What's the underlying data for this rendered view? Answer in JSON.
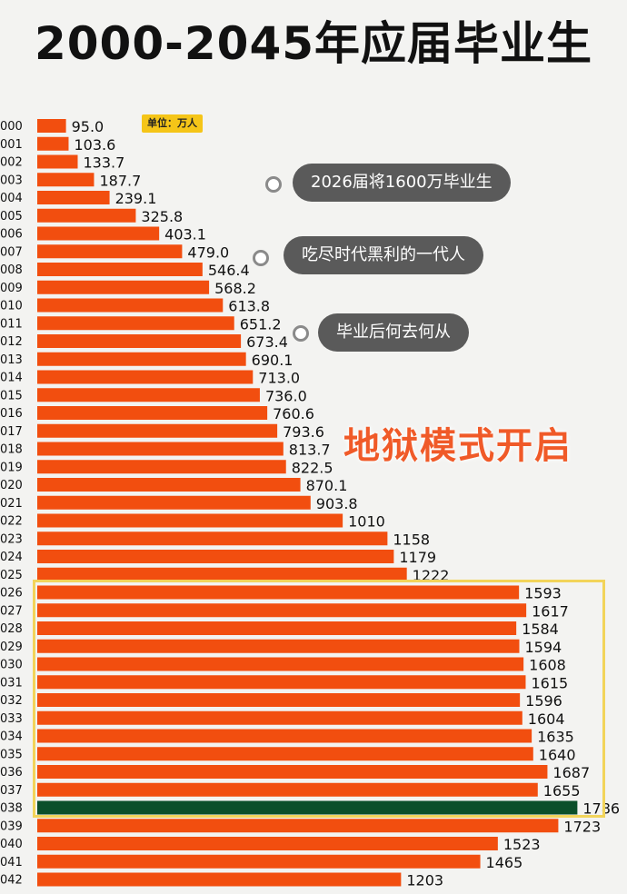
{
  "title": "2000-2045年应届毕业生",
  "unit_label": "单位：万人",
  "callouts": [
    "2026届将1600万毕业生",
    "吃尽时代黑利的一代人",
    "毕业后何去何从"
  ],
  "emphasis_text": "地狱模式开启",
  "colors": {
    "bar": "#f24e0f",
    "highlight_bar": "#0b4f2a",
    "highlight_box": "#f2d45a",
    "callout_bg": "#5a5a5a",
    "emphasis": "#f05a28",
    "unit_badge": "#f5c518"
  },
  "chart_data": {
    "type": "bar",
    "orientation": "horizontal",
    "categories": [
      "000",
      "001",
      "002",
      "003",
      "004",
      "005",
      "006",
      "007",
      "008",
      "009",
      "010",
      "011",
      "012",
      "013",
      "014",
      "015",
      "016",
      "017",
      "018",
      "019",
      "020",
      "021",
      "022",
      "023",
      "024",
      "025",
      "026",
      "027",
      "028",
      "029",
      "030",
      "031",
      "032",
      "033",
      "034",
      "035",
      "036",
      "037",
      "038",
      "039",
      "040",
      "041",
      "042"
    ],
    "value_labels": [
      "95.0",
      "103.6",
      "133.7",
      "187.7",
      "239.1",
      "325.8",
      "403.1",
      "479.0",
      "546.4",
      "568.2",
      "613.8",
      "651.2",
      "673.4",
      "690.1",
      "713.0",
      "736.0",
      "760.6",
      "793.6",
      "813.7",
      "822.5",
      "870.1",
      "903.8",
      "1010",
      "1158",
      "1179",
      "1222",
      "1593",
      "1617",
      "1584",
      "1594",
      "1608",
      "1615",
      "1596",
      "1604",
      "1635",
      "1640",
      "1687",
      "1655",
      "1786",
      "1723",
      "1523",
      "1465",
      "1203"
    ],
    "values": [
      95.0,
      103.6,
      133.7,
      187.7,
      239.1,
      325.8,
      403.1,
      479.0,
      546.4,
      568.2,
      613.8,
      651.2,
      673.4,
      690.1,
      713.0,
      736.0,
      760.6,
      793.6,
      813.7,
      822.5,
      870.1,
      903.8,
      1010,
      1158,
      1179,
      1222,
      1593,
      1617,
      1584,
      1594,
      1608,
      1615,
      1596,
      1604,
      1635,
      1640,
      1687,
      1655,
      1786,
      1723,
      1523,
      1465,
      1203
    ],
    "highlighted_category": "038",
    "highlight_range": [
      "026",
      "037"
    ],
    "unit": "万人"
  }
}
